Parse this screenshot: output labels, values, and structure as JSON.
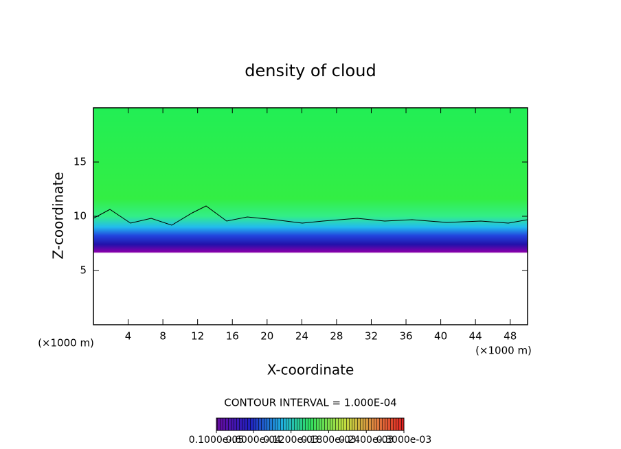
{
  "chart_data": {
    "type": "contour",
    "title": "density of cloud",
    "x_label": "X-coordinate",
    "y_label": "Z-coordinate",
    "x_unit_left": "(×1000 m)",
    "x_unit_right": "(×1000 m)",
    "contour_interval": "CONTOUR INTERVAL = 1.000E-04",
    "xlim": [
      0,
      50
    ],
    "xticks": [
      4,
      8,
      12,
      16,
      20,
      24,
      28,
      32,
      36,
      40,
      44,
      48
    ],
    "ylim": [
      0,
      20
    ],
    "yticks": [
      5,
      10,
      15
    ],
    "colorbar": {
      "lim": [
        1e-06,
        0.0003
      ],
      "ticks": [
        {
          "value": 1e-06,
          "label": "0.1000e-05"
        },
        {
          "value": 6e-05,
          "label": "0.6000e-04"
        },
        {
          "value": 0.00012,
          "label": "0.1200e-03"
        },
        {
          "value": 0.00018,
          "label": "0.1800e-03"
        },
        {
          "value": 0.00024,
          "label": "0.2400e-03"
        },
        {
          "value": 0.0003,
          "label": "0.3000e-03"
        }
      ]
    }
  }
}
